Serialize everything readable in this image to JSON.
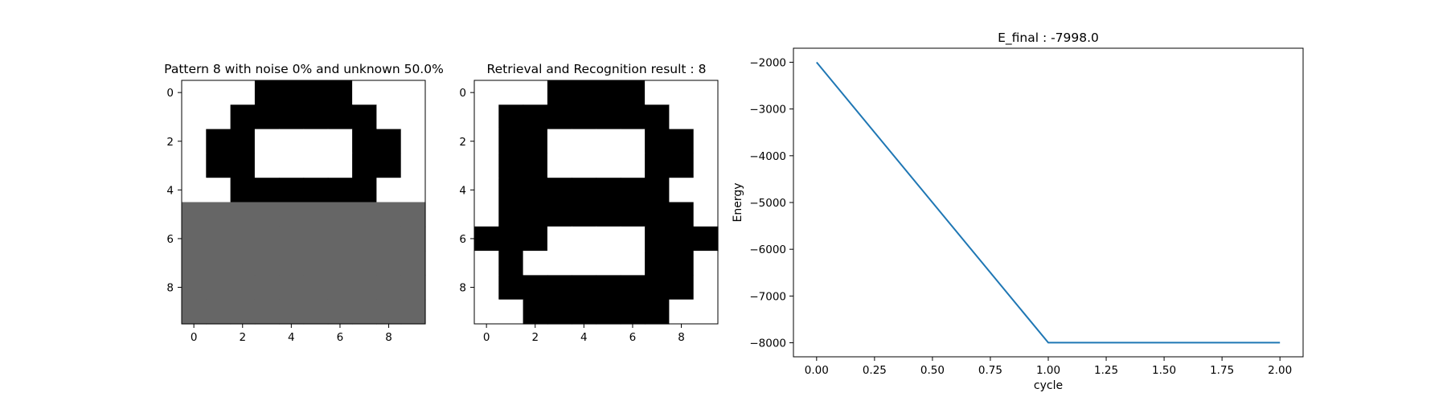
{
  "colors": {
    "white": "#ffffff",
    "black": "#000000",
    "unknown": "#666666",
    "line": "#1f77b4"
  },
  "chart_data": [
    {
      "type": "heatmap",
      "title": "Pattern 8 with noise 0% and unknown 50.0%",
      "xticks": [
        "0",
        "2",
        "4",
        "6",
        "8"
      ],
      "yticks": [
        "0",
        "2",
        "4",
        "6",
        "8"
      ],
      "legend": "0 = white, 1 = black, 2 = unknown (gray)",
      "grid": [
        [
          0,
          0,
          0,
          1,
          1,
          1,
          1,
          0,
          0,
          0
        ],
        [
          0,
          0,
          1,
          1,
          1,
          1,
          1,
          1,
          0,
          0
        ],
        [
          0,
          1,
          1,
          0,
          0,
          0,
          0,
          1,
          1,
          0
        ],
        [
          0,
          1,
          1,
          0,
          0,
          0,
          0,
          1,
          1,
          0
        ],
        [
          0,
          0,
          1,
          1,
          1,
          1,
          1,
          1,
          0,
          0
        ],
        [
          2,
          2,
          2,
          2,
          2,
          2,
          2,
          2,
          2,
          2
        ],
        [
          2,
          2,
          2,
          2,
          2,
          2,
          2,
          2,
          2,
          2
        ],
        [
          2,
          2,
          2,
          2,
          2,
          2,
          2,
          2,
          2,
          2
        ],
        [
          2,
          2,
          2,
          2,
          2,
          2,
          2,
          2,
          2,
          2
        ],
        [
          2,
          2,
          2,
          2,
          2,
          2,
          2,
          2,
          2,
          2
        ]
      ]
    },
    {
      "type": "heatmap",
      "title": "Retrieval and Recognition result : 8",
      "xticks": [
        "0",
        "2",
        "4",
        "6",
        "8"
      ],
      "yticks": [
        "0",
        "2",
        "4",
        "6",
        "8"
      ],
      "legend": "0 = white, 1 = black",
      "grid": [
        [
          0,
          0,
          0,
          1,
          1,
          1,
          1,
          0,
          0,
          0
        ],
        [
          0,
          1,
          1,
          1,
          1,
          1,
          1,
          1,
          0,
          0
        ],
        [
          0,
          1,
          1,
          0,
          0,
          0,
          0,
          1,
          1,
          0
        ],
        [
          0,
          1,
          1,
          0,
          0,
          0,
          0,
          1,
          1,
          0
        ],
        [
          0,
          1,
          1,
          1,
          1,
          1,
          1,
          1,
          0,
          0
        ],
        [
          0,
          1,
          1,
          1,
          1,
          1,
          1,
          1,
          1,
          0
        ],
        [
          1,
          1,
          1,
          0,
          0,
          0,
          0,
          1,
          1,
          1
        ],
        [
          0,
          1,
          0,
          0,
          0,
          0,
          0,
          1,
          1,
          0
        ],
        [
          0,
          1,
          1,
          1,
          1,
          1,
          1,
          1,
          1,
          0
        ],
        [
          0,
          0,
          1,
          1,
          1,
          1,
          1,
          1,
          0,
          0
        ]
      ]
    },
    {
      "type": "line",
      "title": "E_final : -7998.0",
      "xlabel": "cycle",
      "ylabel": "Energy",
      "x": [
        0,
        1,
        2
      ],
      "y": [
        -2000,
        -7998,
        -7998
      ],
      "xlim": [
        -0.1,
        2.1
      ],
      "ylim": [
        -8300,
        -1700
      ],
      "xticks": [
        "0.00",
        "0.25",
        "0.50",
        "0.75",
        "1.00",
        "1.25",
        "1.50",
        "1.75",
        "2.00"
      ],
      "xtick_values": [
        0,
        0.25,
        0.5,
        0.75,
        1.0,
        1.25,
        1.5,
        1.75,
        2.0
      ],
      "yticks": [
        "−2000",
        "−3000",
        "−4000",
        "−5000",
        "−6000",
        "−7000",
        "−8000"
      ],
      "ytick_values": [
        -2000,
        -3000,
        -4000,
        -5000,
        -6000,
        -7000,
        -8000
      ],
      "grid": false
    }
  ]
}
